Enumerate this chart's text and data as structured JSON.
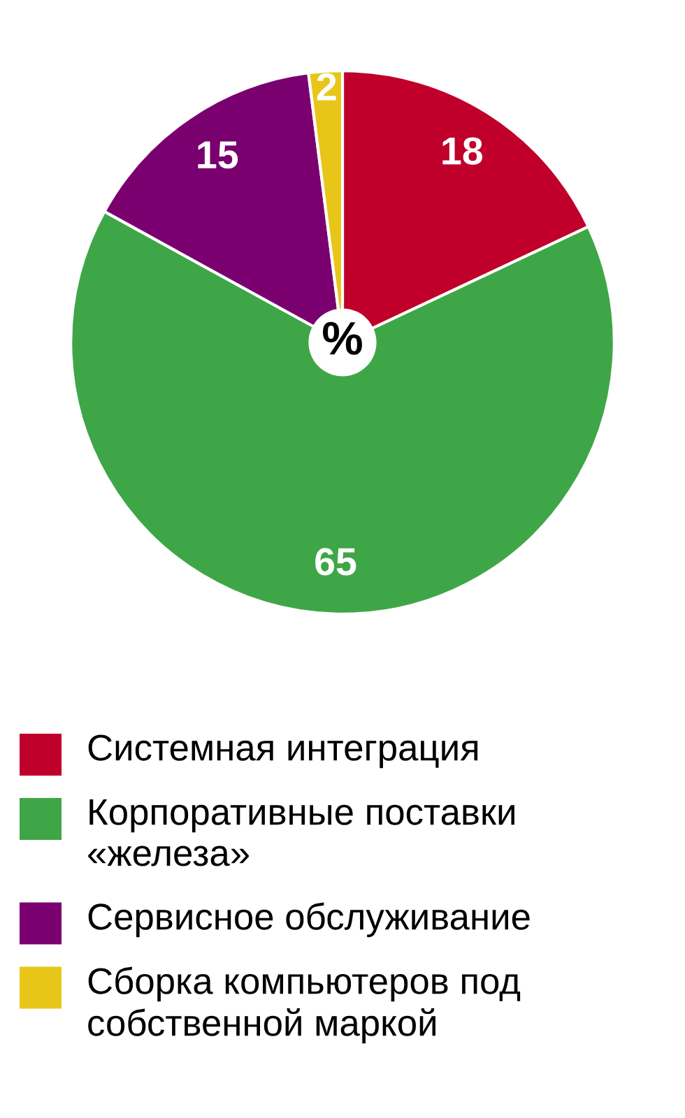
{
  "chart_data": {
    "type": "pie",
    "categories": [
      "Системная интеграция",
      "Корпоративные поставки «железа»",
      "Сервисное обслуживание",
      "Сборка компьютеров под собственной маркой"
    ],
    "values": [
      18,
      65,
      15,
      2
    ],
    "colors": [
      "#c0002a",
      "#3fa648",
      "#7a0070",
      "#e8c619"
    ],
    "data_labels": true,
    "legend": "bottom",
    "annotations": [
      "%"
    ]
  }
}
